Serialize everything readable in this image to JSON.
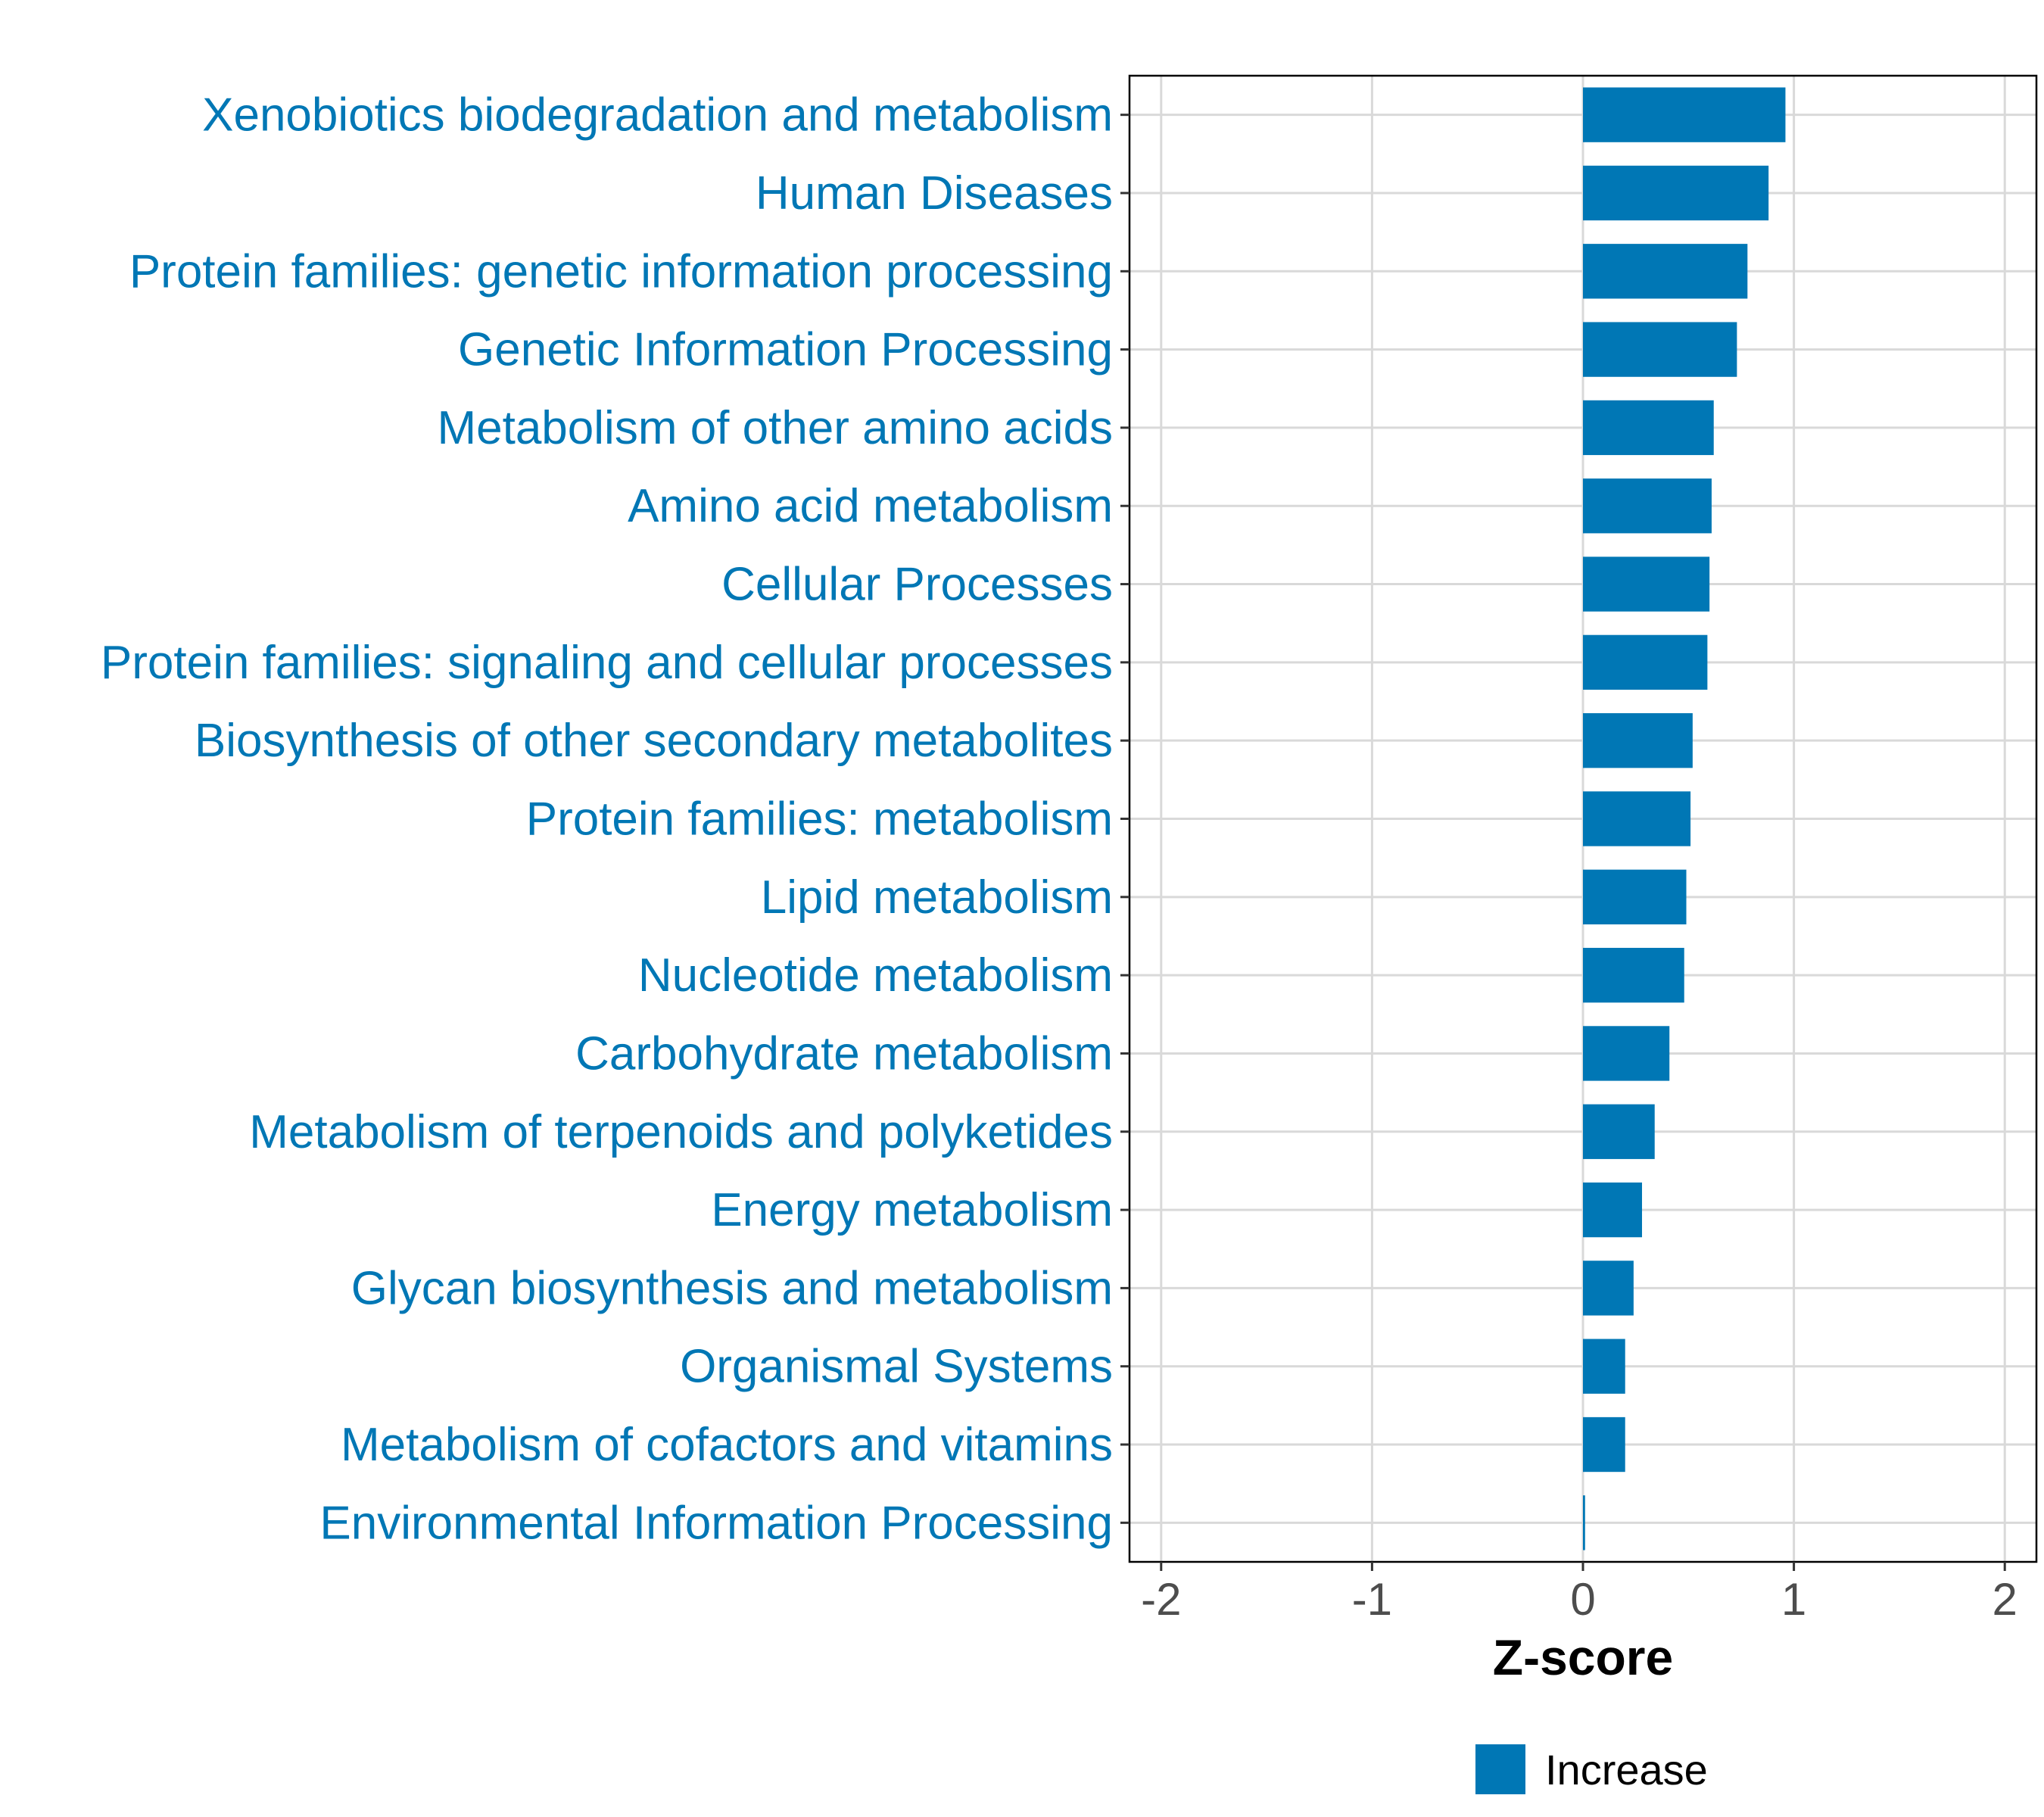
{
  "chart_data": {
    "type": "bar",
    "orientation": "horizontal",
    "categories": [
      "Xenobiotics biodegradation and metabolism",
      "Human Diseases",
      "Protein families: genetic information processing",
      "Genetic Information Processing",
      "Metabolism of other amino acids",
      "Amino acid metabolism",
      "Cellular Processes",
      "Protein families: signaling and cellular processes",
      "Biosynthesis of other secondary metabolites",
      "Protein families: metabolism",
      "Lipid metabolism",
      "Nucleotide metabolism",
      "Carbohydrate metabolism",
      "Metabolism of terpenoids and polyketides",
      "Energy metabolism",
      "Glycan biosynthesis and metabolism",
      "Organismal Systems",
      "Metabolism of cofactors and vitamins",
      "Environmental Information Processing"
    ],
    "values": [
      0.96,
      0.88,
      0.78,
      0.73,
      0.62,
      0.61,
      0.6,
      0.59,
      0.52,
      0.51,
      0.49,
      0.48,
      0.41,
      0.34,
      0.28,
      0.24,
      0.2,
      0.2,
      0.01
    ],
    "series": [
      {
        "name": "Increase",
        "values": [
          0.96,
          0.88,
          0.78,
          0.73,
          0.62,
          0.61,
          0.6,
          0.59,
          0.52,
          0.51,
          0.49,
          0.48,
          0.41,
          0.34,
          0.28,
          0.24,
          0.2,
          0.2,
          0.01
        ]
      }
    ],
    "xlabel": "Z-score",
    "ylabel": "",
    "xlim": [
      -2.15,
      2.15
    ],
    "xticks": [
      -2,
      -1,
      0,
      1,
      2
    ],
    "xtick_labels": [
      "-2",
      "-1",
      "0",
      "1",
      "2"
    ],
    "grid": true,
    "legend": {
      "position": "bottom",
      "entries": [
        {
          "label": "Increase",
          "color": "#0077b5"
        }
      ]
    },
    "colors": {
      "bar": "#0077b5",
      "label": "#0077b5",
      "grid": "#d9d9d9",
      "tick": "#4d4d4d"
    }
  }
}
